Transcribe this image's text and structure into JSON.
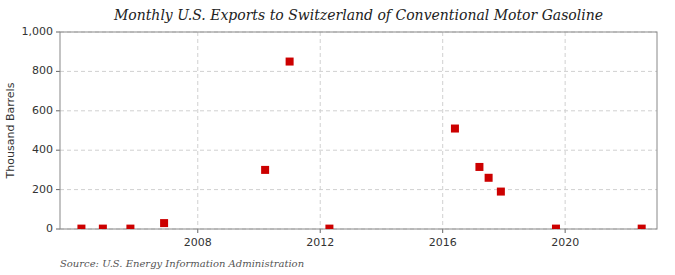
{
  "chart_data": {
    "type": "scatter",
    "title": "Monthly U.S. Exports to Switzerland of Conventional Motor Gasoline",
    "y_label": "Thousand Barrels",
    "source": "Source: U.S. Energy Information Administration",
    "x": [
      2004.2,
      2004.9,
      2005.8,
      2006.9,
      2010.2,
      2011.0,
      2012.3,
      2016.4,
      2017.2,
      2017.5,
      2017.9,
      2019.7,
      2022.5
    ],
    "values": [
      2,
      2,
      2,
      30,
      300,
      850,
      2,
      510,
      315,
      260,
      190,
      2,
      2
    ],
    "color": "#cc0000",
    "marker": "square",
    "xlim": [
      2003.5,
      2023.0
    ],
    "ylim": [
      0,
      1000
    ],
    "xticks": [
      2008,
      2012,
      2016,
      2020
    ],
    "yticks": [
      0,
      200,
      400,
      600,
      800,
      {
        "value": 1000,
        "label": "1,000"
      }
    ],
    "grid": true
  }
}
